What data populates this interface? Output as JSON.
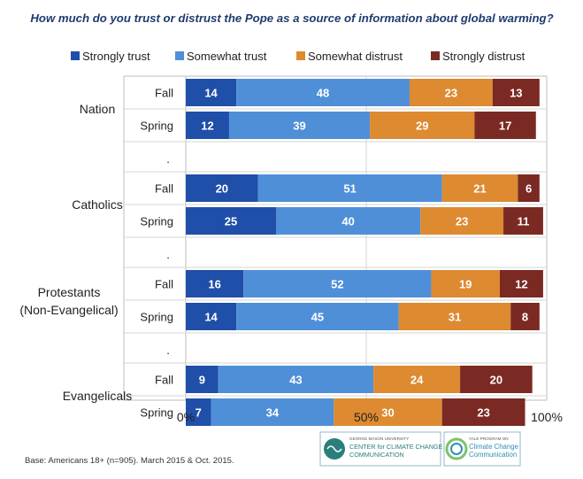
{
  "chart_data": {
    "type": "bar",
    "orientation": "horizontal",
    "stacked": true,
    "title": "How much do you trust or distrust the Pope as a source of information about global warming?",
    "legend": [
      {
        "name": "Strongly trust",
        "color": "#1f4fa8"
      },
      {
        "name": "Somewhat trust",
        "color": "#4f8fd8"
      },
      {
        "name": "Somewhat distrust",
        "color": "#dd8a30"
      },
      {
        "name": "Strongly distrust",
        "color": "#7a2a22"
      }
    ],
    "legend_position": "top",
    "groups": [
      {
        "label": "Nation",
        "rows": [
          {
            "label": "Fall",
            "values": [
              14,
              48,
              23,
              13
            ]
          },
          {
            "label": "Spring",
            "values": [
              12,
              39,
              29,
              17
            ]
          }
        ]
      },
      {
        "label": "Catholics",
        "rows": [
          {
            "label": "Fall",
            "values": [
              20,
              51,
              21,
              6
            ]
          },
          {
            "label": "Spring",
            "values": [
              25,
              40,
              23,
              11
            ]
          }
        ]
      },
      {
        "label": "Protestants (Non-Evangelical)",
        "label_lines": [
          "Protestants",
          "(Non-Evangelical)"
        ],
        "rows": [
          {
            "label": "Fall",
            "values": [
              16,
              52,
              19,
              12
            ]
          },
          {
            "label": "Spring",
            "values": [
              14,
              45,
              31,
              8
            ]
          }
        ]
      },
      {
        "label": "Evangelicals",
        "rows": [
          {
            "label": "Fall",
            "values": [
              9,
              43,
              24,
              20
            ]
          },
          {
            "label": "Spring",
            "values": [
              7,
              34,
              30,
              23
            ]
          }
        ]
      }
    ],
    "separator_label": ".",
    "xlim": [
      0,
      100
    ],
    "xticks": [
      "0%",
      "50%",
      "100%"
    ],
    "footnote": "Base: Americans 18+ (n=905). March 2015 & Oct. 2015.",
    "logos": [
      {
        "small": "GEORGE MASON UNIVERSITY",
        "lines": [
          "CENTER for CLIMATE CHANGE",
          "COMMUNICATION"
        ],
        "color": "#2a7f7a"
      },
      {
        "small": "YALE PROGRAM ON",
        "lines": [
          "Climate Change",
          "Communication"
        ],
        "color": "#2f8fb8"
      }
    ]
  }
}
